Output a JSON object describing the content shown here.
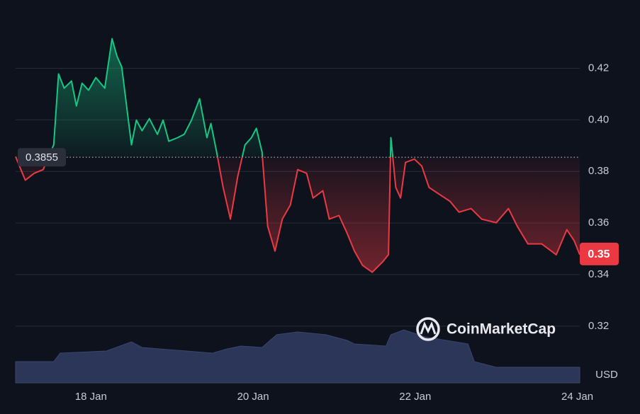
{
  "chart_data": {
    "type": "line",
    "x": [
      17.07,
      17.19,
      17.3,
      17.41,
      17.54,
      17.6,
      17.67,
      17.76,
      17.82,
      17.89,
      17.97,
      18.06,
      18.17,
      18.26,
      18.32,
      18.38,
      18.45,
      18.5,
      18.56,
      18.63,
      18.72,
      18.82,
      18.89,
      18.96,
      19.07,
      19.15,
      19.24,
      19.34,
      19.43,
      19.48,
      19.55,
      19.63,
      19.72,
      19.81,
      19.9,
      19.98,
      20.04,
      20.11,
      20.18,
      20.27,
      20.36,
      20.46,
      20.55,
      20.66,
      20.74,
      20.86,
      20.94,
      21.06,
      21.16,
      21.25,
      21.35,
      21.47,
      21.6,
      21.67,
      21.7,
      21.76,
      21.82,
      21.88,
      21.99,
      22.08,
      22.17,
      22.3,
      22.43,
      22.54,
      22.69,
      22.82,
      23.0,
      23.15,
      23.26,
      23.39,
      23.56,
      23.74,
      23.87,
      23.96,
      24.03
    ],
    "values": [
      0.3857,
      0.3766,
      0.3793,
      0.3807,
      0.3903,
      0.4178,
      0.4123,
      0.4151,
      0.4054,
      0.4142,
      0.4115,
      0.4164,
      0.4123,
      0.4315,
      0.4247,
      0.4205,
      0.4027,
      0.3903,
      0.3999,
      0.3958,
      0.4005,
      0.3944,
      0.3999,
      0.3917,
      0.3931,
      0.3944,
      0.3999,
      0.4082,
      0.3931,
      0.3986,
      0.3876,
      0.3738,
      0.3615,
      0.378,
      0.3903,
      0.3931,
      0.3967,
      0.3876,
      0.3587,
      0.3491,
      0.3615,
      0.367,
      0.3807,
      0.3793,
      0.3697,
      0.3725,
      0.3615,
      0.3629,
      0.356,
      0.3491,
      0.3436,
      0.3409,
      0.345,
      0.3477,
      0.3931,
      0.3738,
      0.3697,
      0.3835,
      0.3848,
      0.3821,
      0.3738,
      0.3711,
      0.3684,
      0.3642,
      0.3656,
      0.3615,
      0.3601,
      0.3656,
      0.3587,
      0.3519,
      0.3519,
      0.3477,
      0.3574,
      0.3532,
      0.3477
    ],
    "baseline": 0.3855,
    "current_price": {
      "value": 0.348,
      "label": "0.35"
    },
    "up_color": "#16c784",
    "down_color": "#ea3943",
    "xlim": [
      17.07,
      24.03
    ],
    "ylim": [
      0.298,
      0.441
    ],
    "xticks": [
      {
        "value": 18,
        "label": "18 Jan"
      },
      {
        "value": 20,
        "label": "20 Jan"
      },
      {
        "value": 22,
        "label": "22 Jan"
      },
      {
        "value": 24,
        "label": "24 Jan"
      }
    ],
    "yticks": [
      0.32,
      0.34,
      0.36,
      0.38,
      {
        "value": 0.4,
        "label": "0.40"
      },
      0.42
    ],
    "grid": true,
    "currency": "USD",
    "watermark": "CoinMarketCap",
    "volume": {
      "x": [
        17.07,
        17.54,
        17.62,
        18.19,
        18.5,
        18.63,
        19.5,
        19.68,
        19.85,
        20.11,
        20.29,
        20.55,
        20.9,
        21.16,
        21.25,
        21.64,
        21.7,
        21.86,
        22.12,
        22.65,
        22.73,
        23.0,
        24.03
      ],
      "values": [
        30,
        30,
        42,
        45,
        58,
        50,
        42,
        48,
        52,
        50,
        68,
        72,
        68,
        60,
        55,
        52,
        68,
        75,
        65,
        55,
        30,
        22,
        22
      ],
      "ylim": [
        0,
        100
      ],
      "color": "#2c3659"
    }
  }
}
